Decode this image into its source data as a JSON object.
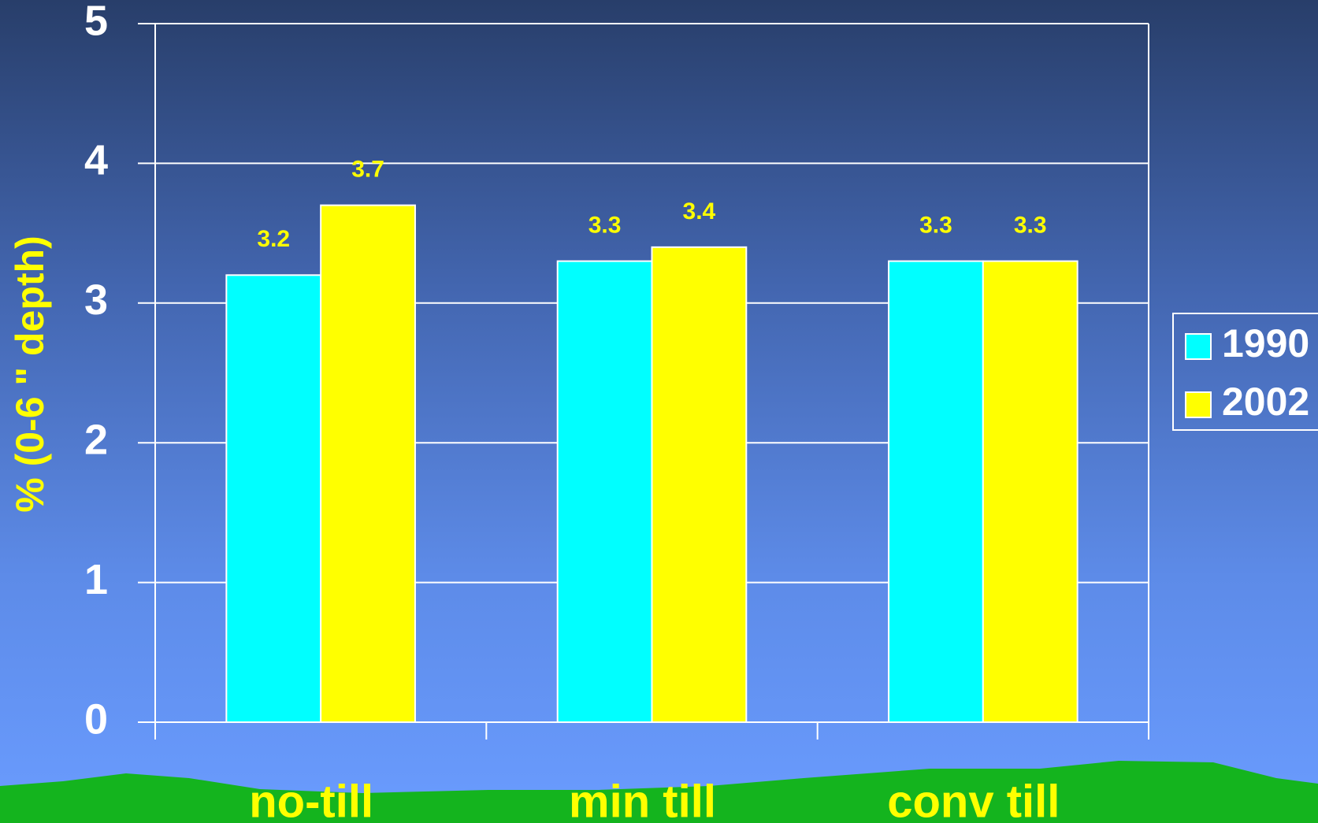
{
  "chart_data": {
    "type": "bar",
    "y_label": "% (0-6 \" depth)",
    "categories": [
      "no-till",
      "min till",
      "conv till"
    ],
    "series": [
      {
        "name": "1990",
        "color": "#00ffff",
        "values": [
          3.2,
          3.3,
          3.3
        ]
      },
      {
        "name": "2002",
        "color": "#ffff00",
        "values": [
          3.7,
          3.4,
          3.3
        ]
      }
    ],
    "ylim": [
      0,
      5
    ],
    "yticks": [
      0,
      1,
      2,
      3,
      4,
      5
    ],
    "grid": true,
    "legend": "right"
  }
}
